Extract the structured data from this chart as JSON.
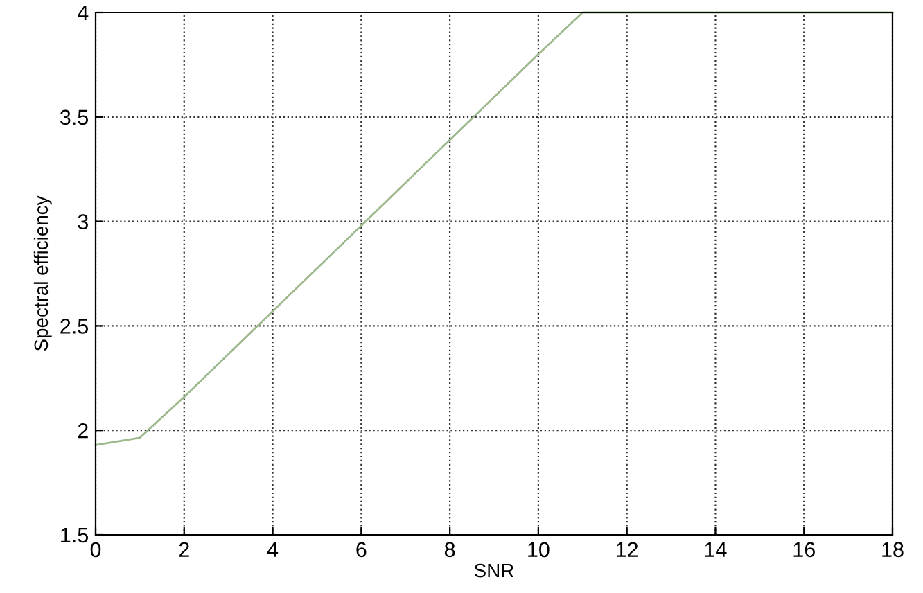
{
  "chart_data": {
    "type": "line",
    "xlabel": "SNR",
    "ylabel": "Spectral efficiency",
    "series": [
      {
        "color": "#9cb88c",
        "x": [
          0,
          1,
          2,
          4,
          6,
          8,
          10,
          11,
          18
        ],
        "values": [
          1.93,
          1.965,
          2.16,
          2.57,
          2.98,
          3.39,
          3.8,
          4.0,
          4.0
        ]
      }
    ],
    "xlim": [
      0,
      18
    ],
    "xticks": [
      0,
      2,
      4,
      6,
      8,
      10,
      12,
      14,
      16,
      18
    ],
    "ylim": [
      1.5,
      4
    ],
    "yticks": [
      1.5,
      2,
      2.5,
      3,
      3.5,
      4
    ],
    "grid": true,
    "marker": "none",
    "line_style": "solid"
  }
}
